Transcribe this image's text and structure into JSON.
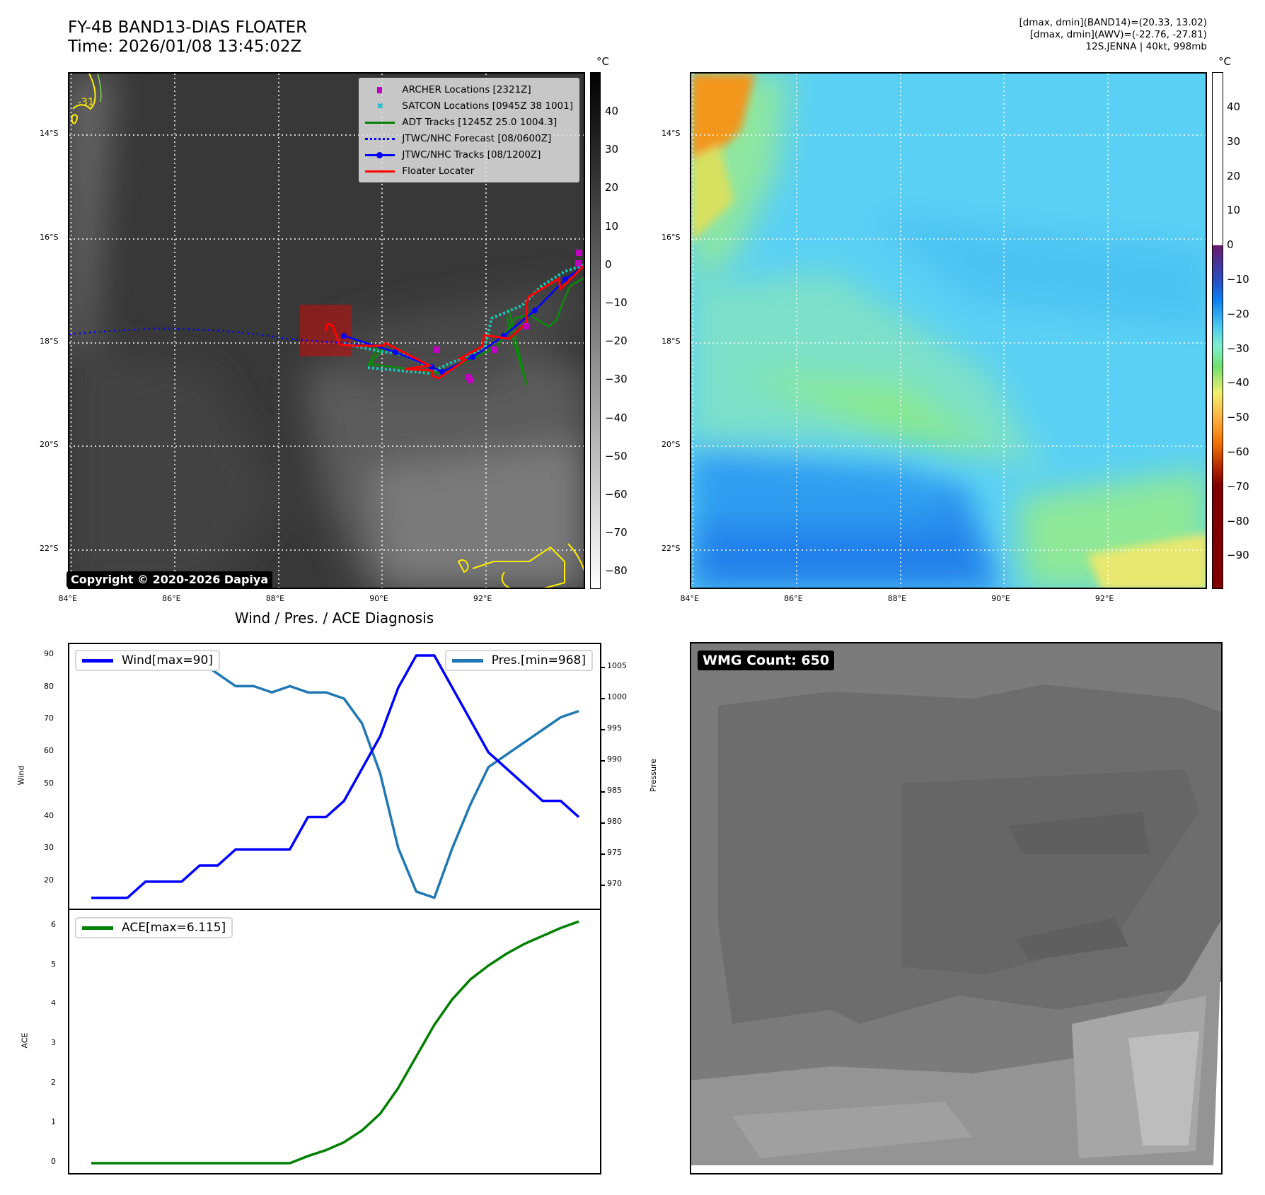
{
  "header": {
    "title_line1": "FY-4B BAND13-DIAS FLOATER",
    "title_line2": "Time: 2026/01/08 13:45:02Z",
    "right_line1": "[dmax, dmin](BAND14)=(20.33, 13.02)",
    "right_line2": "[dmax, dmin](AWV)=(-22.76, -27.81)",
    "right_line3": "12S.JENNA | 40kt, 998mb"
  },
  "map": {
    "lon_labels": [
      "84°E",
      "86°E",
      "88°E",
      "90°E",
      "92°E"
    ],
    "lat_labels": [
      "14°S",
      "16°S",
      "18°S",
      "20°S",
      "22°S"
    ],
    "unit": "°C",
    "contour_label": "-31",
    "copyright": "Copyright © 2020-2026 Dapiya",
    "legend": [
      {
        "label": "ARCHER Locations [2321Z]",
        "color": "#c000c0"
      },
      {
        "label": "SATCON Locations [0945Z 38 1001]",
        "color": "#17becf"
      },
      {
        "label": "ADT Tracks [1245Z 25.0 1004.3]",
        "color": "#008000"
      },
      {
        "label": "JTWC/NHC Forecast [08/0600Z]",
        "color": "#0000ff"
      },
      {
        "label": "JTWC/NHC Tracks [08/1200Z]",
        "color": "#0000ff"
      },
      {
        "label": "Floater Locater",
        "color": "#ff0000"
      }
    ],
    "colorbar_left_ticks": [
      "40",
      "30",
      "20",
      "10",
      "0",
      "−10",
      "−20",
      "−30",
      "−40",
      "−50",
      "−60",
      "−70",
      "−80"
    ],
    "colorbar_right_ticks": [
      "40",
      "30",
      "20",
      "10",
      "0",
      "−10",
      "−20",
      "−30",
      "−40",
      "−50",
      "−60",
      "−70",
      "−80",
      "−90"
    ]
  },
  "wmg": {
    "label": "WMG Count: 650"
  },
  "chart_data": {
    "type": "line",
    "title": "Wind / Pres. / ACE Diagnosis",
    "panels": [
      {
        "ylabel": "Wind",
        "y2label": "Pressure",
        "yticks": [
          20,
          30,
          40,
          50,
          60,
          70,
          80,
          90
        ],
        "y2ticks": [
          970,
          975,
          980,
          985,
          990,
          995,
          1000,
          1005
        ],
        "series": [
          {
            "name": "Wind[max=90]",
            "color": "#0000ff",
            "axis": "left",
            "values": [
              15,
              15,
              15,
              20,
              20,
              20,
              25,
              25,
              30,
              30,
              30,
              30,
              40,
              40,
              45,
              55,
              65,
              80,
              90,
              90,
              80,
              70,
              60,
              55,
              50,
              45,
              45,
              40
            ]
          },
          {
            "name": "Pres.[min=968]",
            "color": "#1f77b4",
            "axis": "right",
            "values": [
              1007,
              1007,
              1007,
              1007,
              1006,
              1006,
              1006,
              1004,
              1002,
              1002,
              1001,
              1002,
              1001,
              1001,
              1000,
              996,
              988,
              976,
              969,
              968,
              976,
              983,
              989,
              991,
              993,
              995,
              997,
              998
            ]
          }
        ]
      },
      {
        "ylabel": "ACE",
        "yticks": [
          0,
          1,
          2,
          3,
          4,
          5,
          6
        ],
        "series": [
          {
            "name": "ACE[max=6.115]",
            "color": "#008000",
            "values": [
              0,
              0,
              0,
              0,
              0,
              0,
              0,
              0,
              0,
              0,
              0,
              0,
              0.18,
              0.33,
              0.53,
              0.83,
              1.25,
              1.9,
              2.7,
              3.5,
              4.15,
              4.65,
              5.0,
              5.3,
              5.55,
              5.75,
              5.95,
              6.115
            ]
          }
        ]
      }
    ]
  }
}
